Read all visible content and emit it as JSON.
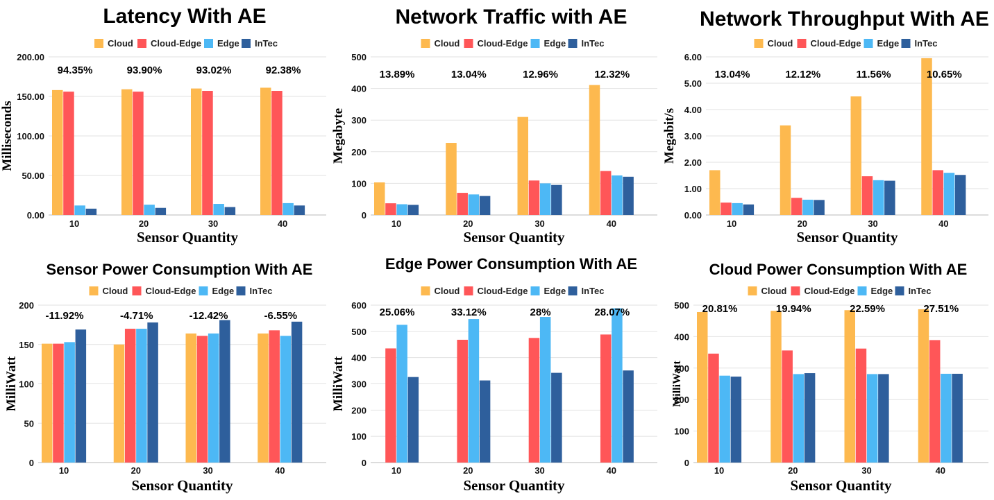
{
  "colors": {
    "Cloud": "#FDB94F",
    "Cloud-Edge": "#FF5658",
    "Edge": "#4DB8F5",
    "InTec": "#2E5F9C",
    "grid": "#e2e2e2",
    "axis": "#b8b8b8"
  },
  "chart_data": [
    {
      "type": "bar",
      "title": "Latency With AE",
      "xlabel": "Sensor Quantity",
      "ylabel": "Milliseconds",
      "categories": [
        "10",
        "20",
        "30",
        "40"
      ],
      "ylim": [
        0,
        200
      ],
      "yticks": [
        "0.00",
        "50.00",
        "100.00",
        "150.00",
        "200.00"
      ],
      "grid": true,
      "legend": "top",
      "series": [
        {
          "name": "Cloud",
          "values": [
            158,
            159,
            160,
            161
          ]
        },
        {
          "name": "Cloud-Edge",
          "values": [
            156,
            156,
            157,
            157
          ]
        },
        {
          "name": "Edge",
          "values": [
            12,
            13,
            14,
            15
          ]
        },
        {
          "name": "InTec",
          "values": [
            8,
            9,
            10,
            12
          ]
        }
      ],
      "annotations": [
        "94.35%",
        "93.90%",
        "93.02%",
        "92.38%"
      ]
    },
    {
      "type": "bar",
      "title": "Network Traffic with AE",
      "xlabel": "Sensor Quantity",
      "ylabel": "Megabyte",
      "categories": [
        "10",
        "20",
        "30",
        "40"
      ],
      "ylim": [
        0,
        500
      ],
      "yticks": [
        "0",
        "100",
        "200",
        "300",
        "400",
        "500"
      ],
      "grid": true,
      "legend": "top",
      "series": [
        {
          "name": "Cloud",
          "values": [
            103,
            228,
            310,
            411
          ]
        },
        {
          "name": "Cloud-Edge",
          "values": [
            37,
            70,
            109,
            139
          ]
        },
        {
          "name": "Edge",
          "values": [
            34,
            65,
            100,
            125
          ]
        },
        {
          "name": "InTec",
          "values": [
            32,
            60,
            95,
            121
          ]
        }
      ],
      "annotations": [
        "13.89%",
        "13.04%",
        "12.96%",
        "12.32%"
      ]
    },
    {
      "type": "bar",
      "title": "Network Throughput With AE",
      "xlabel": "Sensor Quantity",
      "ylabel": "Megabit/s",
      "categories": [
        "10",
        "20",
        "30",
        "40"
      ],
      "ylim": [
        0,
        6
      ],
      "yticks": [
        "0.00",
        "1.00",
        "2.00",
        "3.00",
        "4.00",
        "5.00",
        "6.00"
      ],
      "grid": true,
      "legend": "top",
      "series": [
        {
          "name": "Cloud",
          "values": [
            1.7,
            3.4,
            4.5,
            5.95
          ]
        },
        {
          "name": "Cloud-Edge",
          "values": [
            0.47,
            0.65,
            1.47,
            1.7
          ]
        },
        {
          "name": "Edge",
          "values": [
            0.45,
            0.58,
            1.32,
            1.6
          ]
        },
        {
          "name": "InTec",
          "values": [
            0.4,
            0.57,
            1.3,
            1.52
          ]
        }
      ],
      "annotations": [
        "13.04%",
        "12.12%",
        "11.56%",
        "10.65%"
      ]
    },
    {
      "type": "bar",
      "title": "Sensor Power Consumption With AE",
      "xlabel": "Sensor Quantity",
      "ylabel": "MilliWatt",
      "categories": [
        "10",
        "20",
        "30",
        "40"
      ],
      "ylim": [
        0,
        200
      ],
      "yticks": [
        "0",
        "50",
        "100",
        "150",
        "200"
      ],
      "grid": true,
      "legend": "top",
      "series": [
        {
          "name": "Cloud",
          "values": [
            151,
            150,
            164,
            164
          ]
        },
        {
          "name": "Cloud-Edge",
          "values": [
            151,
            170,
            161,
            168
          ]
        },
        {
          "name": "Edge",
          "values": [
            153,
            170,
            164,
            161
          ]
        },
        {
          "name": "InTec",
          "values": [
            169,
            178,
            181,
            179
          ]
        }
      ],
      "annotations": [
        "-11.92%",
        "-4.71%",
        "-12.42%",
        "-6.55%"
      ]
    },
    {
      "type": "bar",
      "title": "Edge Power Consumption With AE",
      "xlabel": "Sensor Quantity",
      "ylabel": "MilliWatt",
      "categories": [
        "10",
        "20",
        "30",
        "40"
      ],
      "ylim": [
        0,
        600
      ],
      "yticks": [
        "0",
        "100",
        "200",
        "300",
        "400",
        "500",
        "600"
      ],
      "grid": true,
      "legend": "top",
      "series": [
        {
          "name": "Cloud",
          "values": [
            0,
            0,
            0,
            0
          ]
        },
        {
          "name": "Cloud-Edge",
          "values": [
            435,
            468,
            475,
            488
          ]
        },
        {
          "name": "Edge",
          "values": [
            525,
            547,
            555,
            588
          ]
        },
        {
          "name": "InTec",
          "values": [
            326,
            313,
            342,
            351
          ]
        }
      ],
      "annotations": [
        "25.06%",
        "33.12%",
        "28%",
        "28.07%"
      ]
    },
    {
      "type": "bar",
      "title": "Cloud Power Consumption With AE",
      "xlabel": "Sensor Quantity",
      "ylabel": "MilliWatt",
      "categories": [
        "10",
        "20",
        "30",
        "40"
      ],
      "ylim": [
        0,
        500
      ],
      "yticks": [
        "0",
        "100",
        "200",
        "300",
        "400",
        "500"
      ],
      "grid": true,
      "legend": "top",
      "series": [
        {
          "name": "Cloud",
          "values": [
            478,
            482,
            484,
            487
          ]
        },
        {
          "name": "Cloud-Edge",
          "values": [
            346,
            356,
            362,
            389
          ]
        },
        {
          "name": "Edge",
          "values": [
            276,
            281,
            281,
            282
          ]
        },
        {
          "name": "InTec",
          "values": [
            273,
            284,
            281,
            282
          ]
        }
      ],
      "annotations": [
        "20.81%",
        "19.94%",
        "22.59%",
        "27.51%"
      ]
    }
  ]
}
